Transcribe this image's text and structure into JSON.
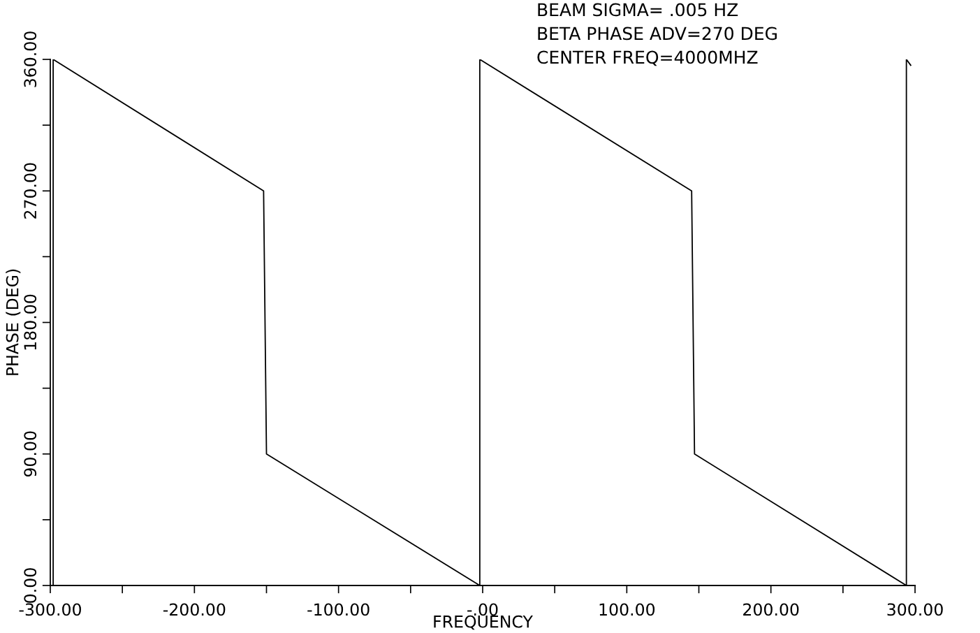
{
  "chart_data": {
    "type": "line",
    "xlabel": "FREQUENCY",
    "ylabel": "PHASE (DEG)",
    "annotations": [
      "BEAM SIGMA= .005 HZ",
      "BETA PHASE ADV=270 DEG",
      "CENTER FREQ=4000MHZ"
    ],
    "x": [
      -298,
      -298,
      -152,
      -150,
      -2,
      -2,
      145,
      147,
      294,
      294,
      297
    ],
    "series": [
      {
        "color": "#000000",
        "values": [
          0,
          360,
          270,
          90,
          0,
          360,
          270,
          90,
          0,
          360,
          356
        ]
      }
    ],
    "xlim": [
      -300,
      300
    ],
    "ylim": [
      0,
      360
    ],
    "xticks": [
      {
        "value": -300,
        "label": "-300.00"
      },
      {
        "value": -200,
        "label": "-200.00"
      },
      {
        "value": -100,
        "label": "-100.00"
      },
      {
        "value": 0,
        "label": "-.00"
      },
      {
        "value": 100,
        "label": "100.00"
      },
      {
        "value": 200,
        "label": "200.00"
      },
      {
        "value": 300,
        "label": "300.00"
      }
    ],
    "yticks": [
      {
        "value": 0,
        "label": "0.00"
      },
      {
        "value": 90,
        "label": "90.00"
      },
      {
        "value": 180,
        "label": "180.00"
      },
      {
        "value": 270,
        "label": "270.00"
      },
      {
        "value": 360,
        "label": "360.00"
      }
    ],
    "grid": false,
    "legend": false,
    "marker": "none",
    "line_style": "solid"
  }
}
